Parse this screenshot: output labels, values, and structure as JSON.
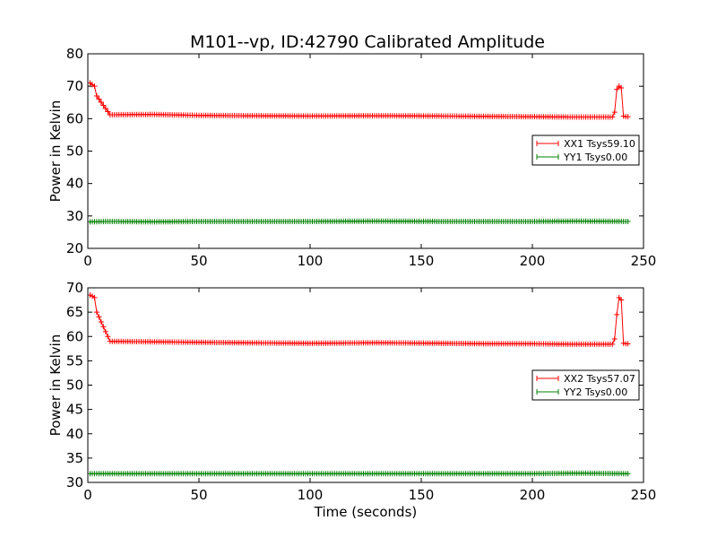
{
  "title": "M101--vp, ID:42790 Calibrated Amplitude",
  "colors": {
    "xx": "#ff0000",
    "yy": "#008000",
    "axes": "#000000",
    "background": "#ffffff"
  },
  "chart_data": [
    {
      "type": "line",
      "xlabel": "",
      "ylabel": "Power in Kelvin",
      "xlim": [
        0,
        250
      ],
      "ylim": [
        20,
        80
      ],
      "xticks": [
        0,
        50,
        100,
        150,
        200,
        250
      ],
      "yticks": [
        20,
        30,
        40,
        50,
        60,
        70,
        80
      ],
      "xtick_labels": [
        "0",
        "50",
        "100",
        "150",
        "200",
        "250"
      ],
      "ytick_labels": [
        "20",
        "30",
        "40",
        "50",
        "60",
        "70",
        "80"
      ],
      "legend_position": "center-right",
      "series": [
        {
          "name": "XX1 Tsys59.10",
          "color": "#ff0000",
          "marker": "plus",
          "x": [
            1,
            2,
            3,
            4,
            10,
            30,
            50,
            70,
            100,
            130,
            160,
            180,
            200,
            220,
            230,
            236,
            237,
            238,
            239,
            240,
            241,
            242,
            243
          ],
          "y": [
            71,
            70.5,
            70,
            67,
            61.2,
            61.3,
            61.0,
            60.9,
            60.8,
            60.9,
            60.8,
            60.7,
            60.6,
            60.5,
            60.5,
            60.5,
            62,
            69,
            70,
            69.5,
            60.8,
            60.6,
            60.6
          ]
        },
        {
          "name": "YY1 Tsys0.00",
          "color": "#008000",
          "marker": "plus",
          "x": [
            1,
            10,
            30,
            50,
            70,
            100,
            130,
            160,
            180,
            200,
            220,
            243
          ],
          "y": [
            28.2,
            28.3,
            28.2,
            28.3,
            28.3,
            28.3,
            28.4,
            28.3,
            28.3,
            28.3,
            28.4,
            28.3
          ]
        }
      ]
    },
    {
      "type": "line",
      "xlabel": "Time (seconds)",
      "ylabel": "Power in Kelvin",
      "xlim": [
        0,
        250
      ],
      "ylim": [
        30,
        70
      ],
      "xticks": [
        0,
        50,
        100,
        150,
        200,
        250
      ],
      "yticks": [
        30,
        35,
        40,
        45,
        50,
        55,
        60,
        65,
        70
      ],
      "xtick_labels": [
        "0",
        "50",
        "100",
        "150",
        "200",
        "250"
      ],
      "ytick_labels": [
        "30",
        "35",
        "40",
        "45",
        "50",
        "55",
        "60",
        "65",
        "70"
      ],
      "legend_position": "center-right",
      "series": [
        {
          "name": "XX2 Tsys57.07",
          "color": "#ff0000",
          "marker": "plus",
          "x": [
            1,
            2,
            3,
            4,
            10,
            30,
            50,
            70,
            100,
            130,
            160,
            180,
            200,
            220,
            230,
            236,
            237,
            238,
            239,
            240,
            241,
            242,
            243
          ],
          "y": [
            68.5,
            68.3,
            68,
            65,
            59.0,
            58.9,
            58.8,
            58.7,
            58.6,
            58.7,
            58.6,
            58.5,
            58.5,
            58.4,
            58.4,
            58.4,
            59.5,
            64.5,
            68,
            67.5,
            58.6,
            58.5,
            58.5
          ]
        },
        {
          "name": "YY2 Tsys0.00",
          "color": "#008000",
          "marker": "plus",
          "x": [
            1,
            10,
            30,
            50,
            70,
            100,
            130,
            160,
            180,
            200,
            220,
            243
          ],
          "y": [
            31.8,
            31.8,
            31.8,
            31.8,
            31.8,
            31.8,
            31.8,
            31.8,
            31.8,
            31.8,
            31.9,
            31.8
          ]
        }
      ]
    }
  ]
}
